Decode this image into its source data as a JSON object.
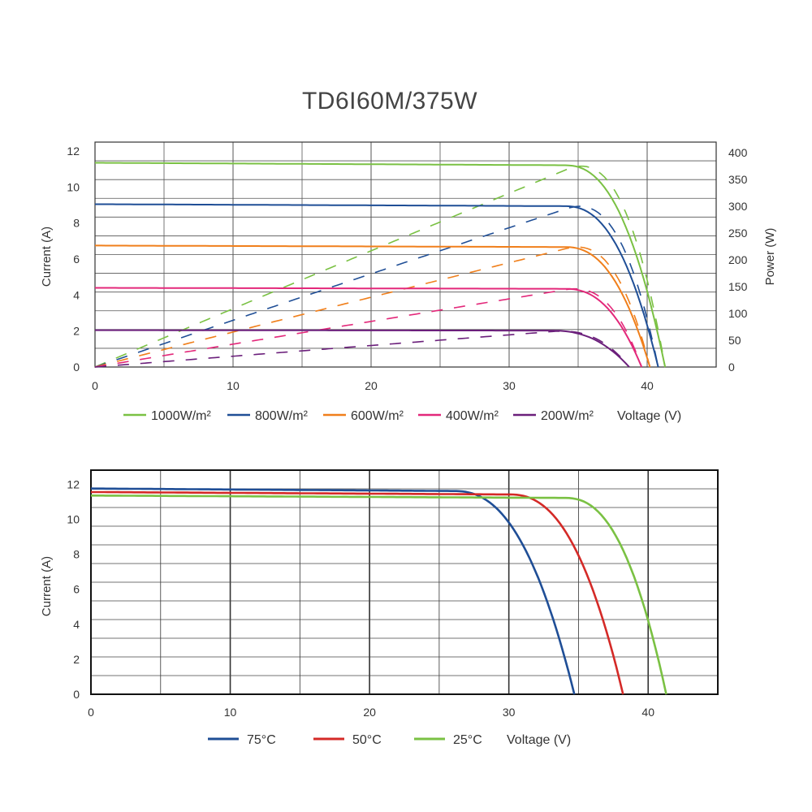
{
  "title": "TD6I60M/375W",
  "chart_data": [
    {
      "type": "line",
      "title": "TD6I60M/375W",
      "xlabel": "Voltage (V)",
      "ylabel": "Current (A)",
      "y2label": "Power (W)",
      "xlim": [
        0,
        45
      ],
      "ylim": [
        0,
        12.5
      ],
      "y2lim": [
        0,
        420
      ],
      "x_ticks": [
        "0",
        "10",
        "20",
        "30",
        "40"
      ],
      "y_ticks": [
        "0",
        "2",
        "4",
        "6",
        "8",
        "10",
        "12"
      ],
      "y2_ticks": [
        "0",
        "50",
        "100",
        "150",
        "200",
        "250",
        "300",
        "350",
        "400"
      ],
      "grid": true,
      "series": [
        {
          "name": "1000W/m²",
          "color": "#7ac143",
          "isc": 11.35,
          "voc": 41.3,
          "knee_v": 34.0,
          "pmax": 375,
          "iv": [
            [
              0,
              11.35
            ],
            [
              10,
              11.3
            ],
            [
              20,
              11.25
            ],
            [
              30,
              11.2
            ],
            [
              34,
              11.0
            ],
            [
              37,
              9.8
            ],
            [
              39,
              6.5
            ],
            [
              40.5,
              3.0
            ],
            [
              41.3,
              0
            ]
          ],
          "power": [
            [
              0,
              0
            ],
            [
              10,
              113
            ],
            [
              20,
              225
            ],
            [
              30,
              336
            ],
            [
              34,
              374
            ],
            [
              37,
              362
            ],
            [
              39,
              254
            ],
            [
              40.5,
              122
            ],
            [
              41.3,
              0
            ]
          ]
        },
        {
          "name": "800W/m²",
          "color": "#1f4e96",
          "isc": 9.05,
          "voc": 40.8,
          "knee_v": 34.0,
          "pmax": 300,
          "iv": [
            [
              0,
              9.05
            ],
            [
              10,
              9.02
            ],
            [
              20,
              8.98
            ],
            [
              30,
              8.95
            ],
            [
              34,
              8.75
            ],
            [
              37,
              7.6
            ],
            [
              39,
              4.8
            ],
            [
              40.8,
              0
            ]
          ],
          "power": [
            [
              0,
              0
            ],
            [
              10,
              90
            ],
            [
              20,
              180
            ],
            [
              30,
              268
            ],
            [
              34,
              298
            ],
            [
              37,
              281
            ],
            [
              39,
              187
            ],
            [
              40.8,
              0
            ]
          ]
        },
        {
          "name": "600W/m²",
          "color": "#f07f1b",
          "isc": 6.75,
          "voc": 40.2,
          "knee_v": 34.0,
          "pmax": 224,
          "iv": [
            [
              0,
              6.75
            ],
            [
              10,
              6.72
            ],
            [
              20,
              6.68
            ],
            [
              30,
              6.65
            ],
            [
              34,
              6.5
            ],
            [
              37,
              5.4
            ],
            [
              39,
              2.9
            ],
            [
              40.2,
              0
            ]
          ],
          "power": [
            [
              0,
              0
            ],
            [
              10,
              67
            ],
            [
              20,
              134
            ],
            [
              30,
              200
            ],
            [
              34,
              221
            ],
            [
              37,
              200
            ],
            [
              39,
              113
            ],
            [
              40.2,
              0
            ]
          ]
        },
        {
          "name": "400W/m²",
          "color": "#e3287a",
          "isc": 4.4,
          "voc": 39.6,
          "knee_v": 34.0,
          "pmax": 146,
          "iv": [
            [
              0,
              4.4
            ],
            [
              10,
              4.38
            ],
            [
              20,
              4.36
            ],
            [
              30,
              4.33
            ],
            [
              34,
              4.2
            ],
            [
              37,
              3.2
            ],
            [
              39,
              1.2
            ],
            [
              39.6,
              0
            ]
          ],
          "power": [
            [
              0,
              0
            ],
            [
              10,
              44
            ],
            [
              20,
              87
            ],
            [
              30,
              130
            ],
            [
              34,
              143
            ],
            [
              37,
              118
            ],
            [
              39,
              47
            ],
            [
              39.6,
              0
            ]
          ]
        },
        {
          "name": "200W/m²",
          "color": "#6b1f7b",
          "isc": 2.05,
          "voc": 38.7,
          "knee_v": 33.0,
          "pmax": 67,
          "iv": [
            [
              0,
              2.05
            ],
            [
              10,
              2.04
            ],
            [
              20,
              2.03
            ],
            [
              30,
              2.01
            ],
            [
              34,
              1.85
            ],
            [
              36,
              1.25
            ],
            [
              38,
              0.4
            ],
            [
              38.7,
              0
            ]
          ],
          "power": [
            [
              0,
              0
            ],
            [
              10,
              20
            ],
            [
              20,
              41
            ],
            [
              30,
              60
            ],
            [
              34,
              63
            ],
            [
              36,
              45
            ],
            [
              38,
              15
            ],
            [
              38.7,
              0
            ]
          ]
        }
      ]
    },
    {
      "type": "line",
      "xlabel": "Voltage (V)",
      "ylabel": "Current (A)",
      "xlim": [
        0,
        45
      ],
      "ylim": [
        0,
        12.8
      ],
      "x_ticks": [
        "0",
        "10",
        "20",
        "30",
        "40"
      ],
      "y_ticks": [
        "0",
        "2",
        "4",
        "6",
        "8",
        "10",
        "12"
      ],
      "grid": true,
      "series": [
        {
          "name": "75°C",
          "color": "#1f4e96",
          "isc": 11.75,
          "voc": 34.7,
          "knee_v": 26.0,
          "iv": [
            [
              0,
              11.75
            ],
            [
              10,
              11.7
            ],
            [
              20,
              11.65
            ],
            [
              26,
              11.45
            ],
            [
              30,
              10.0
            ],
            [
              32,
              7.5
            ],
            [
              34,
              2.5
            ],
            [
              34.7,
              0
            ]
          ]
        },
        {
          "name": "50°C",
          "color": "#d42a27",
          "isc": 11.55,
          "voc": 38.2,
          "knee_v": 30.0,
          "iv": [
            [
              0,
              11.55
            ],
            [
              10,
              11.5
            ],
            [
              20,
              11.45
            ],
            [
              30,
              11.2
            ],
            [
              33,
              10.2
            ],
            [
              35,
              8.0
            ],
            [
              37,
              4.0
            ],
            [
              38.2,
              0
            ]
          ]
        },
        {
          "name": "25°C",
          "color": "#7ac143",
          "isc": 11.35,
          "voc": 41.3,
          "knee_v": 34.0,
          "iv": [
            [
              0,
              11.35
            ],
            [
              10,
              11.3
            ],
            [
              20,
              11.25
            ],
            [
              30,
              11.2
            ],
            [
              34,
              11.0
            ],
            [
              37,
              9.5
            ],
            [
              40,
              4.0
            ],
            [
              41.3,
              0
            ]
          ]
        }
      ]
    }
  ]
}
